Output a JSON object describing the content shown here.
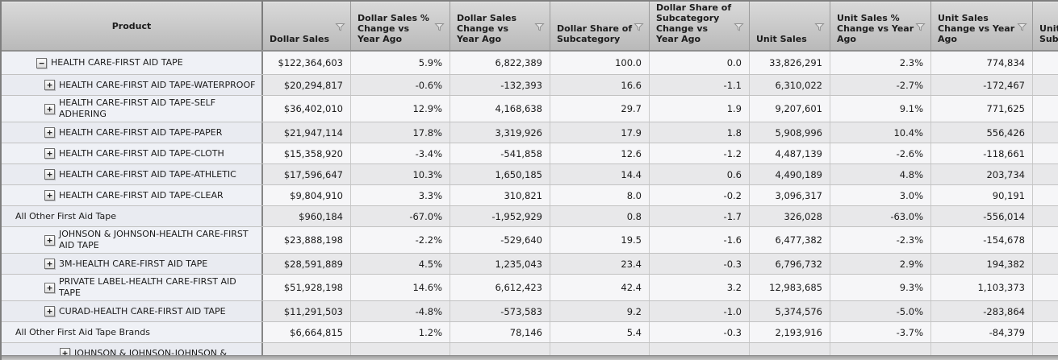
{
  "table": {
    "columns": [
      {
        "id": "product",
        "label": "Product",
        "has_filter": false
      },
      {
        "id": "dollar-sales",
        "label": "Dollar Sales",
        "has_filter": true
      },
      {
        "id": "dollar-sales-pct-change",
        "label": "Dollar Sales % Change vs Year Ago",
        "has_filter": true
      },
      {
        "id": "dollar-sales-change",
        "label": "Dollar Sales Change vs Year Ago",
        "has_filter": true
      },
      {
        "id": "dollar-share",
        "label": "Dollar Share of Subcategory",
        "has_filter": true
      },
      {
        "id": "dollar-share-change",
        "label": "Dollar Share of Subcategory Change vs Year Ago",
        "has_filter": true
      },
      {
        "id": "unit-sales",
        "label": "Unit Sales",
        "has_filter": true
      },
      {
        "id": "unit-sales-pct-change",
        "label": "Unit Sales % Change vs Year Ago",
        "has_filter": true
      },
      {
        "id": "unit-sales-change",
        "label": "Unit Sales Change vs Year Ago",
        "has_filter": true
      },
      {
        "id": "unit-share",
        "label": "Unit Share of Subcategory",
        "has_filter": true
      }
    ],
    "rows": [
      {
        "product": "HEALTH CARE-FIRST AID TAPE",
        "expander": "minus",
        "indent": 1,
        "values": [
          "$122,364,603",
          "5.9%",
          "6,822,389",
          "100.0",
          "0.0",
          "33,826,291",
          "2.3%",
          "774,834",
          ""
        ]
      },
      {
        "product": "HEALTH CARE-FIRST AID TAPE-WATERPROOF",
        "expander": "plus",
        "indent": 2,
        "values": [
          "$20,294,817",
          "-0.6%",
          "-132,393",
          "16.6",
          "-1.1",
          "6,310,022",
          "-2.7%",
          "-172,467",
          ""
        ]
      },
      {
        "product": "HEALTH CARE-FIRST AID TAPE-SELF ADHERING",
        "expander": "plus",
        "indent": 2,
        "values": [
          "$36,402,010",
          "12.9%",
          "4,168,638",
          "29.7",
          "1.9",
          "9,207,601",
          "9.1%",
          "771,625",
          ""
        ]
      },
      {
        "product": "HEALTH CARE-FIRST AID TAPE-PAPER",
        "expander": "plus",
        "indent": 2,
        "values": [
          "$21,947,114",
          "17.8%",
          "3,319,926",
          "17.9",
          "1.8",
          "5,908,996",
          "10.4%",
          "556,426",
          ""
        ]
      },
      {
        "product": "HEALTH CARE-FIRST AID TAPE-CLOTH",
        "expander": "plus",
        "indent": 2,
        "values": [
          "$15,358,920",
          "-3.4%",
          "-541,858",
          "12.6",
          "-1.2",
          "4,487,139",
          "-2.6%",
          "-118,661",
          ""
        ]
      },
      {
        "product": "HEALTH CARE-FIRST AID TAPE-ATHLETIC",
        "expander": "plus",
        "indent": 2,
        "values": [
          "$17,596,647",
          "10.3%",
          "1,650,185",
          "14.4",
          "0.6",
          "4,490,189",
          "4.8%",
          "203,734",
          ""
        ]
      },
      {
        "product": "HEALTH CARE-FIRST AID TAPE-CLEAR",
        "expander": "plus",
        "indent": 2,
        "values": [
          "$9,804,910",
          "3.3%",
          "310,821",
          "8.0",
          "-0.2",
          "3,096,317",
          "3.0%",
          "90,191",
          ""
        ]
      },
      {
        "product": "All Other First Aid Tape",
        "expander": "none",
        "indent": 0,
        "values": [
          "$960,184",
          "-67.0%",
          "-1,952,929",
          "0.8",
          "-1.7",
          "326,028",
          "-63.0%",
          "-556,014",
          ""
        ]
      },
      {
        "product": "JOHNSON & JOHNSON-HEALTH CARE-FIRST AID TAPE",
        "expander": "plus",
        "indent": 2,
        "values": [
          "$23,888,198",
          "-2.2%",
          "-529,640",
          "19.5",
          "-1.6",
          "6,477,382",
          "-2.3%",
          "-154,678",
          ""
        ]
      },
      {
        "product": "3M-HEALTH CARE-FIRST AID TAPE",
        "expander": "plus",
        "indent": 2,
        "values": [
          "$28,591,889",
          "4.5%",
          "1,235,043",
          "23.4",
          "-0.3",
          "6,796,732",
          "2.9%",
          "194,382",
          ""
        ]
      },
      {
        "product": "PRIVATE LABEL-HEALTH CARE-FIRST AID TAPE",
        "expander": "plus",
        "indent": 2,
        "values": [
          "$51,928,198",
          "14.6%",
          "6,612,423",
          "42.4",
          "3.2",
          "12,983,685",
          "9.3%",
          "1,103,373",
          ""
        ]
      },
      {
        "product": "CURAD-HEALTH CARE-FIRST AID TAPE",
        "expander": "plus",
        "indent": 2,
        "values": [
          "$11,291,503",
          "-4.8%",
          "-573,583",
          "9.2",
          "-1.0",
          "5,374,576",
          "-5.0%",
          "-283,864",
          ""
        ]
      },
      {
        "product": "All Other First Aid Tape Brands",
        "expander": "none",
        "indent": 0,
        "values": [
          "$6,664,815",
          "1.2%",
          "78,146",
          "5.4",
          "-0.3",
          "2,193,916",
          "-3.7%",
          "-84,379",
          ""
        ]
      },
      {
        "product": "JOHNSON & JOHNSON-JOHNSON &",
        "expander": "plus",
        "indent": 3,
        "values": [
          "",
          "",
          "",
          "",
          "",
          "",
          "",
          "",
          ""
        ]
      }
    ]
  }
}
